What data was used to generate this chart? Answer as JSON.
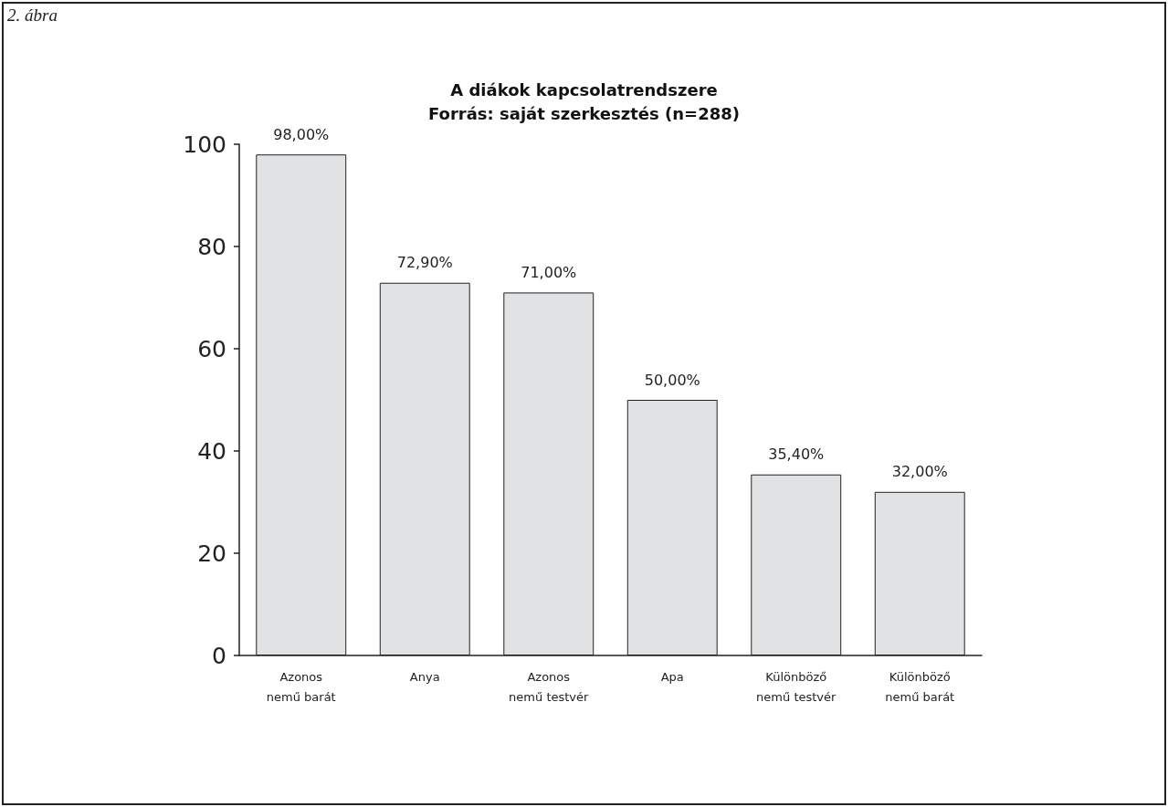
{
  "chart_data": {
    "type": "bar",
    "title": "A diákok kapcsolatrendszere",
    "subtitle": "Forrás: saját szerkesztés (n=288)",
    "annotations": [
      "2. ábra"
    ],
    "categories": [
      "Azonos\nnemű barát",
      "Anya",
      "Azonos\nnemű testvér",
      "Apa",
      "Különböző\nnemű testvér",
      "Különböző\nnemű barát"
    ],
    "values": [
      98,
      72.9,
      71,
      50,
      35.4,
      32
    ],
    "value_labels": [
      "98,00%",
      "72,90%",
      "71,00%",
      "50,00%",
      "35,40%",
      "32,00%"
    ],
    "color": "#e1e2e4",
    "ylim": [
      0,
      100
    ],
    "yticks": [
      0,
      20,
      40,
      60,
      80,
      100
    ],
    "grid": false
  }
}
